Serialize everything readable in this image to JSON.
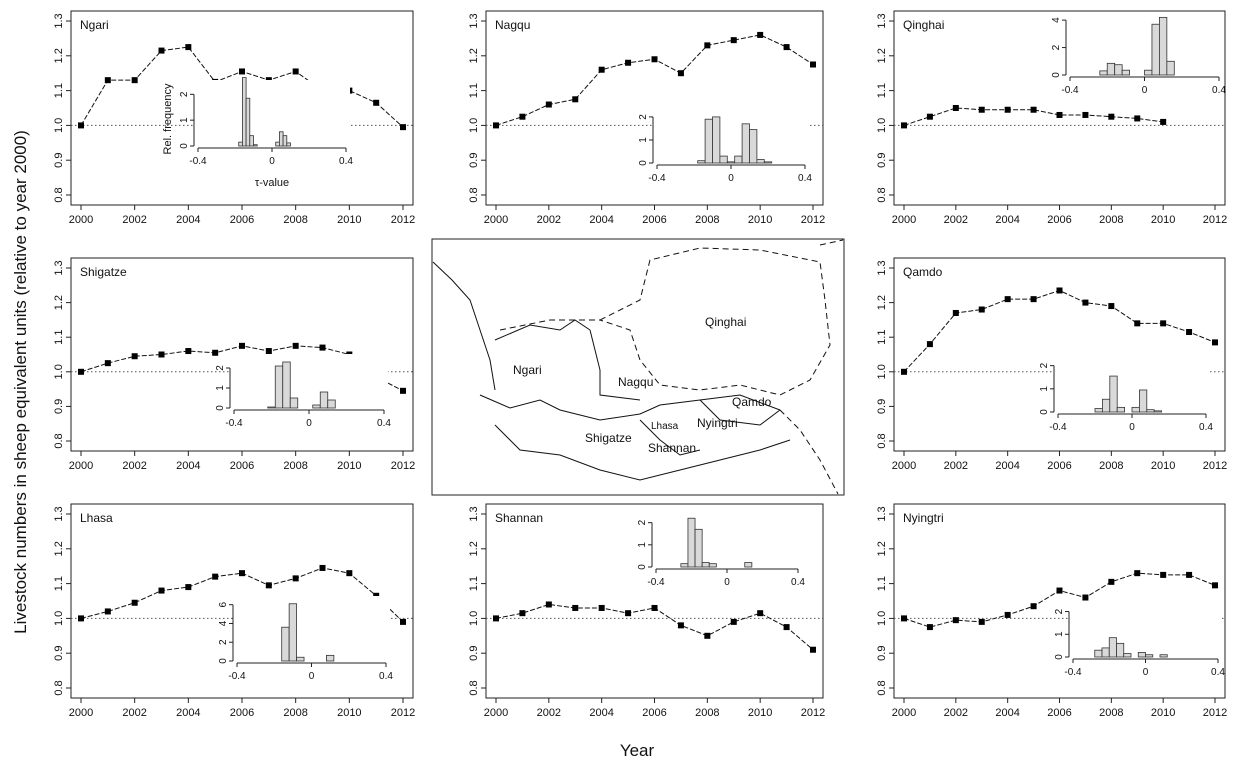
{
  "figure": {
    "ylabel": "Livestock numbers in sheep equivalent units (relative to year 2000)",
    "xlabel": "Year",
    "map_labels": [
      "Qinghai",
      "Ngari",
      "Nagqu",
      "Qamdo",
      "Shigatze",
      "Lhasa",
      "Nyingtri",
      "Shannan"
    ]
  },
  "chart_data": [
    {
      "type": "line",
      "title": "Ngari",
      "x": [
        2000,
        2001,
        2002,
        2003,
        2004,
        2005,
        2006,
        2007,
        2008,
        2009,
        2010,
        2011,
        2012
      ],
      "y": [
        1.0,
        1.13,
        1.13,
        1.215,
        1.225,
        1.125,
        1.155,
        1.13,
        1.155,
        1.1,
        1.1,
        1.065,
        0.995
      ],
      "xlim": [
        2000,
        2012
      ],
      "ylim": [
        0.8,
        1.3
      ],
      "xticks": [
        2000,
        2002,
        2004,
        2006,
        2008,
        2010,
        2012
      ],
      "yticks": [
        "0.8",
        "0.9",
        "1.0",
        "1.1",
        "1.2",
        "1.3"
      ],
      "reference_line": 1.0,
      "inset": {
        "type": "histogram",
        "xlabel": "τ-value",
        "ylabel": "Rel. frequency",
        "xlim": [
          -0.4,
          0.4
        ],
        "ylim": [
          0,
          2.4
        ],
        "yticks": [
          "0",
          "1",
          "2"
        ],
        "xtick_labels": [
          "-0.4",
          "0",
          "0.4"
        ],
        "bin_edges": [
          -0.18,
          -0.16,
          -0.14,
          -0.12,
          -0.1,
          -0.08,
          -0.06,
          -0.04,
          -0.02,
          0,
          0.02,
          0.04,
          0.06,
          0.08,
          0.1,
          0.12
        ],
        "counts": [
          0.15,
          2.65,
          1.85,
          0.4,
          0.05,
          0,
          0,
          0,
          0,
          0,
          0.15,
          0.55,
          0.4,
          0.12,
          0
        ]
      }
    },
    {
      "type": "line",
      "title": "Nagqu",
      "x": [
        2000,
        2001,
        2002,
        2003,
        2004,
        2005,
        2006,
        2007,
        2008,
        2009,
        2010,
        2011,
        2012
      ],
      "y": [
        1.0,
        1.025,
        1.06,
        1.075,
        1.16,
        1.18,
        1.19,
        1.15,
        1.23,
        1.245,
        1.26,
        1.225,
        1.175
      ],
      "xlim": [
        2000,
        2012
      ],
      "ylim": [
        0.8,
        1.3
      ],
      "xticks": [
        2000,
        2002,
        2004,
        2006,
        2008,
        2010,
        2012
      ],
      "yticks": [
        "0.8",
        "0.9",
        "1.0",
        "1.1",
        "1.2",
        "1.3"
      ],
      "reference_line": 1.0,
      "inset": {
        "type": "histogram",
        "xlim": [
          -0.4,
          0.4
        ],
        "ylim": [
          0,
          2.3
        ],
        "yticks": [
          "0",
          "1",
          "2"
        ],
        "xtick_labels": [
          "-0.4",
          "0",
          "0.4"
        ],
        "bin_edges": [
          -0.18,
          -0.14,
          -0.1,
          -0.06,
          -0.02,
          0.02,
          0.06,
          0.1,
          0.14,
          0.18,
          0.22
        ],
        "counts": [
          0.1,
          1.9,
          2.0,
          0.3,
          0.05,
          0.3,
          1.7,
          1.45,
          0.15,
          0.05
        ]
      }
    },
    {
      "type": "line",
      "title": "Qinghai",
      "x": [
        2000,
        2001,
        2002,
        2003,
        2004,
        2005,
        2006,
        2007,
        2008,
        2009,
        2010
      ],
      "y": [
        1.0,
        1.025,
        1.05,
        1.045,
        1.045,
        1.045,
        1.03,
        1.03,
        1.025,
        1.02,
        1.01
      ],
      "xlim": [
        2000,
        2012
      ],
      "ylim": [
        0.8,
        1.3
      ],
      "xticks": [
        2000,
        2002,
        2004,
        2006,
        2008,
        2010,
        2012
      ],
      "yticks": [
        "0.8",
        "0.9",
        "1.0",
        "1.1",
        "1.2",
        "1.3"
      ],
      "reference_line": 1.0,
      "inset": {
        "type": "histogram",
        "xlim": [
          -0.4,
          0.4
        ],
        "ylim": [
          0,
          4.3
        ],
        "yticks": [
          "0",
          "2",
          "4"
        ],
        "xtick_labels": [
          "-0.4",
          "0",
          "0.4"
        ],
        "bin_edges": [
          -0.24,
          -0.2,
          -0.16,
          -0.12,
          -0.08,
          -0.04,
          0,
          0.04,
          0.08,
          0.12,
          0.16,
          0.2
        ],
        "counts": [
          0.3,
          0.85,
          0.75,
          0.35,
          0,
          0,
          0.35,
          3.7,
          4.2,
          1.0,
          0
        ]
      }
    },
    {
      "type": "line",
      "title": "Shigatze",
      "x": [
        2000,
        2001,
        2002,
        2003,
        2004,
        2005,
        2006,
        2007,
        2008,
        2009,
        2010,
        2011,
        2012
      ],
      "y": [
        1.0,
        1.025,
        1.045,
        1.05,
        1.06,
        1.055,
        1.075,
        1.06,
        1.075,
        1.07,
        1.05,
        0.985,
        0.945
      ],
      "xlim": [
        2000,
        2012
      ],
      "ylim": [
        0.8,
        1.3
      ],
      "xticks": [
        2000,
        2002,
        2004,
        2006,
        2008,
        2010,
        2012
      ],
      "yticks": [
        "0.8",
        "0.9",
        "1.0",
        "1.1",
        "1.2",
        "1.3"
      ],
      "reference_line": 1.0,
      "inset": {
        "type": "histogram",
        "xlim": [
          -0.4,
          0.4
        ],
        "ylim": [
          0,
          2.5
        ],
        "yticks": [
          "0",
          "1",
          "2"
        ],
        "xtick_labels": [
          "-0.4",
          "0",
          "0.4"
        ],
        "bin_edges": [
          -0.22,
          -0.18,
          -0.14,
          -0.1,
          -0.06,
          -0.02,
          0.02,
          0.06,
          0.1,
          0.14,
          0.18
        ],
        "counts": [
          0.05,
          2.1,
          2.3,
          0.5,
          0,
          0,
          0.15,
          0.8,
          0.4,
          0
        ]
      }
    },
    {
      "type": "line",
      "title": "Qamdo",
      "x": [
        2000,
        2001,
        2002,
        2003,
        2004,
        2005,
        2006,
        2007,
        2008,
        2009,
        2010,
        2011,
        2012
      ],
      "y": [
        1.0,
        1.08,
        1.17,
        1.18,
        1.21,
        1.21,
        1.235,
        1.2,
        1.19,
        1.14,
        1.14,
        1.115,
        1.085
      ],
      "xlim": [
        2000,
        2012
      ],
      "ylim": [
        0.8,
        1.3
      ],
      "xticks": [
        2000,
        2002,
        2004,
        2006,
        2008,
        2010,
        2012
      ],
      "yticks": [
        "0.8",
        "0.9",
        "1.0",
        "1.1",
        "1.2",
        "1.3"
      ],
      "reference_line": 1.0,
      "inset": {
        "type": "histogram",
        "xlim": [
          -0.4,
          0.4
        ],
        "ylim": [
          0,
          2.2
        ],
        "yticks": [
          "0",
          "1",
          "2"
        ],
        "xtick_labels": [
          "-0.4",
          "0",
          "0.4"
        ],
        "bin_edges": [
          -0.2,
          -0.16,
          -0.12,
          -0.08,
          -0.04,
          0,
          0.04,
          0.08,
          0.12,
          0.16,
          0.2
        ],
        "counts": [
          0.15,
          0.55,
          1.55,
          0.2,
          0,
          0.2,
          0.95,
          0.1,
          0.05,
          0
        ]
      }
    },
    {
      "type": "line",
      "title": "Lhasa",
      "x": [
        2000,
        2001,
        2002,
        2003,
        2004,
        2005,
        2006,
        2007,
        2008,
        2009,
        2010,
        2011,
        2012
      ],
      "y": [
        1.0,
        1.02,
        1.045,
        1.08,
        1.09,
        1.12,
        1.13,
        1.095,
        1.115,
        1.145,
        1.13,
        1.065,
        0.99
      ],
      "xlim": [
        2000,
        2012
      ],
      "ylim": [
        0.8,
        1.3
      ],
      "xticks": [
        2000,
        2002,
        2004,
        2006,
        2008,
        2010,
        2012
      ],
      "yticks": [
        "0.8",
        "0.9",
        "1.0",
        "1.1",
        "1.2",
        "1.3"
      ],
      "reference_line": 1.0,
      "inset": {
        "type": "histogram",
        "xlim": [
          -0.4,
          0.4
        ],
        "ylim": [
          0,
          6.5
        ],
        "yticks": [
          "0",
          "2",
          "4",
          "6"
        ],
        "xtick_labels": [
          "-0.4",
          "0",
          "0.4"
        ],
        "bin_edges": [
          -0.16,
          -0.12,
          -0.08,
          -0.04,
          0,
          0.04,
          0.08,
          0.12
        ],
        "counts": [
          3.6,
          6.1,
          0.4,
          0,
          0,
          0,
          0.6
        ]
      }
    },
    {
      "type": "line",
      "title": "Shannan",
      "x": [
        2000,
        2001,
        2002,
        2003,
        2004,
        2005,
        2006,
        2007,
        2008,
        2009,
        2010,
        2011,
        2012
      ],
      "y": [
        1.0,
        1.015,
        1.04,
        1.03,
        1.03,
        1.015,
        1.03,
        0.98,
        0.95,
        0.99,
        1.015,
        0.975,
        0.91
      ],
      "xlim": [
        2000,
        2012
      ],
      "ylim": [
        0.8,
        1.3
      ],
      "xticks": [
        2000,
        2002,
        2004,
        2006,
        2008,
        2010,
        2012
      ],
      "yticks": [
        "0.8",
        "0.9",
        "1.0",
        "1.1",
        "1.2",
        "1.3"
      ],
      "reference_line": 1.0,
      "inset": {
        "type": "histogram",
        "xlim": [
          -0.4,
          0.4
        ],
        "ylim": [
          0,
          2.3
        ],
        "yticks": [
          "0",
          "1",
          "2"
        ],
        "xtick_labels": [
          "-0.4",
          "0",
          "0.4"
        ],
        "bin_edges": [
          -0.26,
          -0.22,
          -0.18,
          -0.14,
          -0.1,
          -0.06,
          -0.02,
          0.02,
          0.06,
          0.1,
          0.14,
          0.18,
          0.22
        ],
        "counts": [
          0.15,
          2.2,
          1.7,
          0.2,
          0.15,
          0,
          0,
          0,
          0,
          0.2,
          0,
          0
        ]
      }
    },
    {
      "type": "line",
      "title": "Nyingtri",
      "x": [
        2000,
        2001,
        2002,
        2003,
        2004,
        2005,
        2006,
        2007,
        2008,
        2009,
        2010,
        2011,
        2012
      ],
      "y": [
        1.0,
        0.975,
        0.995,
        0.99,
        1.01,
        1.035,
        1.08,
        1.06,
        1.105,
        1.13,
        1.125,
        1.125,
        1.095
      ],
      "xlim": [
        2000,
        2012
      ],
      "ylim": [
        0.8,
        1.3
      ],
      "xticks": [
        2000,
        2002,
        2004,
        2006,
        2008,
        2010,
        2012
      ],
      "yticks": [
        "0.8",
        "0.9",
        "1.0",
        "1.1",
        "1.2",
        "1.3"
      ],
      "reference_line": 1.0,
      "inset": {
        "type": "histogram",
        "xlim": [
          -0.4,
          0.4
        ],
        "ylim": [
          0,
          2.2
        ],
        "yticks": [
          "0",
          "1",
          "2"
        ],
        "xtick_labels": [
          "-0.4",
          "0",
          "0.4"
        ],
        "bin_edges": [
          -0.28,
          -0.24,
          -0.2,
          -0.16,
          -0.12,
          -0.08,
          -0.04,
          0,
          0.04,
          0.08,
          0.12,
          0.16,
          0.2
        ],
        "counts": [
          0.3,
          0.4,
          0.85,
          0.6,
          0.15,
          0,
          0.2,
          0.1,
          0,
          0.1,
          0,
          0
        ]
      }
    }
  ]
}
